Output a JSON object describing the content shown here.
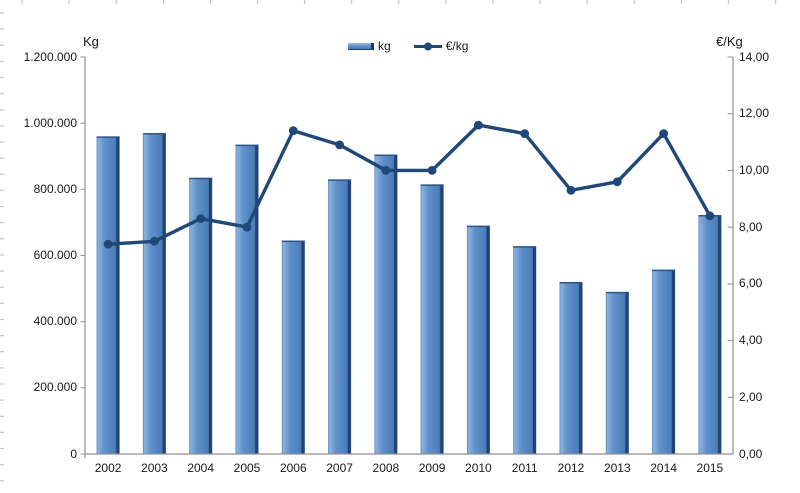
{
  "chart_data": {
    "type": "combo",
    "categories": [
      "2002",
      "2003",
      "2004",
      "2005",
      "2006",
      "2007",
      "2008",
      "2009",
      "2010",
      "2011",
      "2012",
      "2013",
      "2014",
      "2015"
    ],
    "series": [
      {
        "name": "kg",
        "type": "bar",
        "axis": "left",
        "values": [
          960000,
          970000,
          835000,
          935000,
          645000,
          830000,
          905000,
          815000,
          690000,
          628000,
          520000,
          490000,
          557000,
          722000
        ]
      },
      {
        "name": "€/kg",
        "type": "line",
        "axis": "right",
        "values": [
          7.4,
          7.5,
          8.3,
          8.0,
          11.4,
          10.9,
          10.0,
          10.0,
          11.6,
          11.3,
          9.3,
          9.6,
          11.3,
          8.4
        ]
      }
    ],
    "left_axis": {
      "title": "Kg",
      "min": 0,
      "max": 1200000,
      "step": 200000,
      "tick_labels": [
        "1.200.000",
        "1.000.000",
        "800.000",
        "600.000",
        "400.000",
        "200.000",
        "0"
      ]
    },
    "right_axis": {
      "title": "€/Kg",
      "min": 0,
      "max": 14,
      "step": 2,
      "tick_labels": [
        "14,00",
        "12,00",
        "10,00",
        "8,00",
        "6,00",
        "4,00",
        "2,00",
        "0,00"
      ]
    },
    "legend": {
      "position": "top",
      "items": [
        {
          "label": "kg",
          "type": "bar"
        },
        {
          "label": "€/kg",
          "type": "line"
        }
      ]
    },
    "grid": false
  },
  "colors": {
    "bar_fill": "#5F90CA",
    "bar_fill_light": "#8AB2DD",
    "bar_fill_dark": "#4C7EBA",
    "bar_edge_dark": "#24497E",
    "bar_edge_top": "#2B5288",
    "line": "#1F4778",
    "axis": "#909090",
    "text": "#1A1A1A",
    "edge_tick": "#C6CAD0",
    "background": "#FFFFFF"
  }
}
